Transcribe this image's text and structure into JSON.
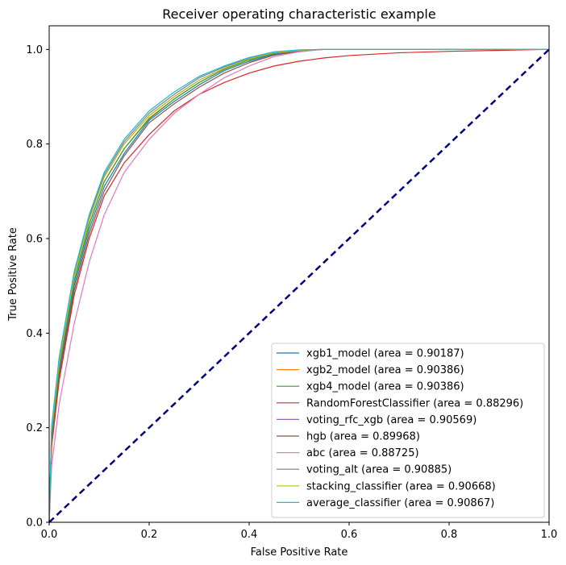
{
  "chart_data": {
    "type": "line",
    "title": "Receiver operating characteristic example",
    "xlabel": "False Positive Rate",
    "ylabel": "True Positive Rate",
    "xlim": [
      0,
      1
    ],
    "ylim": [
      0,
      1.05
    ],
    "xticks": [
      "0.0",
      "0.2",
      "0.4",
      "0.6",
      "0.8",
      "1.0"
    ],
    "yticks": [
      "0.0",
      "0.2",
      "0.4",
      "0.6",
      "0.8",
      "1.0"
    ],
    "legend_position": "lower-right",
    "grid": false,
    "diagonal": {
      "x": [
        0,
        1
      ],
      "y": [
        0,
        1
      ],
      "color": "#000080",
      "style": "dashed"
    },
    "series": [
      {
        "name": "xgb1_model (area = 0.90187)",
        "color": "#1f77b4",
        "x": [
          0,
          0.005,
          0.02,
          0.05,
          0.08,
          0.11,
          0.15,
          0.2,
          0.25,
          0.3,
          0.35,
          0.4,
          0.45,
          0.5,
          0.55,
          0.6,
          0.8,
          1.0
        ],
        "y": [
          0,
          0.18,
          0.32,
          0.5,
          0.62,
          0.71,
          0.78,
          0.85,
          0.89,
          0.925,
          0.955,
          0.975,
          0.99,
          0.997,
          1.0,
          1.0,
          1.0,
          1.0
        ]
      },
      {
        "name": "xgb2_model (area = 0.90386)",
        "color": "#ff7f0e",
        "x": [
          0,
          0.005,
          0.02,
          0.05,
          0.08,
          0.11,
          0.15,
          0.2,
          0.25,
          0.3,
          0.35,
          0.4,
          0.45,
          0.5,
          0.55,
          0.6,
          0.8,
          1.0
        ],
        "y": [
          0,
          0.19,
          0.33,
          0.51,
          0.63,
          0.72,
          0.79,
          0.855,
          0.895,
          0.93,
          0.958,
          0.978,
          0.992,
          0.998,
          1.0,
          1.0,
          1.0,
          1.0
        ]
      },
      {
        "name": "xgb4_model (area = 0.90386)",
        "color": "#2ca02c",
        "x": [
          0,
          0.005,
          0.02,
          0.05,
          0.08,
          0.11,
          0.15,
          0.2,
          0.25,
          0.3,
          0.35,
          0.4,
          0.45,
          0.5,
          0.55,
          0.6,
          0.8,
          1.0
        ],
        "y": [
          0,
          0.19,
          0.335,
          0.51,
          0.63,
          0.72,
          0.79,
          0.853,
          0.895,
          0.93,
          0.958,
          0.978,
          0.992,
          0.998,
          1.0,
          1.0,
          1.0,
          1.0
        ]
      },
      {
        "name": "RandomForestClassifier (area = 0.88296)",
        "color": "#d62728",
        "x": [
          0,
          0.005,
          0.02,
          0.05,
          0.08,
          0.11,
          0.15,
          0.2,
          0.25,
          0.3,
          0.35,
          0.4,
          0.45,
          0.5,
          0.55,
          0.6,
          0.7,
          0.8,
          0.9,
          1.0
        ],
        "y": [
          0,
          0.16,
          0.3,
          0.48,
          0.6,
          0.69,
          0.76,
          0.82,
          0.87,
          0.905,
          0.93,
          0.95,
          0.965,
          0.975,
          0.982,
          0.987,
          0.993,
          0.996,
          0.998,
          1.0
        ]
      },
      {
        "name": "voting_rfc_xgb (area = 0.90569)",
        "color": "#9467bd",
        "x": [
          0,
          0.005,
          0.02,
          0.05,
          0.08,
          0.11,
          0.15,
          0.2,
          0.25,
          0.3,
          0.35,
          0.4,
          0.45,
          0.5,
          0.55,
          0.6,
          0.8,
          1.0
        ],
        "y": [
          0,
          0.2,
          0.34,
          0.52,
          0.64,
          0.73,
          0.8,
          0.86,
          0.9,
          0.935,
          0.96,
          0.98,
          0.993,
          0.998,
          1.0,
          1.0,
          1.0,
          1.0
        ]
      },
      {
        "name": "hgb (area = 0.89968)",
        "color": "#8c564b",
        "x": [
          0,
          0.005,
          0.02,
          0.05,
          0.08,
          0.11,
          0.15,
          0.2,
          0.25,
          0.3,
          0.35,
          0.4,
          0.45,
          0.5,
          0.55,
          0.6,
          0.8,
          1.0
        ],
        "y": [
          0,
          0.17,
          0.31,
          0.49,
          0.61,
          0.7,
          0.775,
          0.845,
          0.885,
          0.92,
          0.95,
          0.972,
          0.988,
          0.996,
          1.0,
          1.0,
          1.0,
          1.0
        ]
      },
      {
        "name": "abc (area = 0.88725)",
        "color": "#e377c2",
        "x": [
          0,
          0.005,
          0.02,
          0.05,
          0.08,
          0.11,
          0.15,
          0.2,
          0.25,
          0.3,
          0.35,
          0.4,
          0.45,
          0.5,
          0.55,
          0.6,
          0.8,
          1.0
        ],
        "y": [
          0,
          0.12,
          0.25,
          0.42,
          0.55,
          0.65,
          0.74,
          0.81,
          0.865,
          0.905,
          0.94,
          0.965,
          0.985,
          0.995,
          1.0,
          1.0,
          1.0,
          1.0
        ]
      },
      {
        "name": "voting_alt (area = 0.90885)",
        "color": "#7f7f7f",
        "x": [
          0,
          0.005,
          0.02,
          0.05,
          0.08,
          0.11,
          0.15,
          0.2,
          0.25,
          0.3,
          0.35,
          0.4,
          0.45,
          0.5,
          0.55,
          0.6,
          0.8,
          1.0
        ],
        "y": [
          0,
          0.2,
          0.345,
          0.525,
          0.645,
          0.735,
          0.805,
          0.865,
          0.905,
          0.94,
          0.963,
          0.982,
          0.994,
          0.999,
          1.0,
          1.0,
          1.0,
          1.0
        ]
      },
      {
        "name": "stacking_classifier (area = 0.90668)",
        "color": "#bcbd22",
        "x": [
          0,
          0.005,
          0.02,
          0.05,
          0.08,
          0.11,
          0.15,
          0.2,
          0.25,
          0.3,
          0.35,
          0.4,
          0.45,
          0.5,
          0.55,
          0.6,
          0.8,
          1.0
        ],
        "y": [
          0,
          0.195,
          0.34,
          0.52,
          0.64,
          0.73,
          0.8,
          0.86,
          0.9,
          0.935,
          0.96,
          0.98,
          0.993,
          0.998,
          1.0,
          1.0,
          1.0,
          1.0
        ]
      },
      {
        "name": "average_classifier (area = 0.90867)",
        "color": "#17becf",
        "x": [
          0,
          0.005,
          0.02,
          0.05,
          0.08,
          0.11,
          0.15,
          0.2,
          0.25,
          0.3,
          0.35,
          0.4,
          0.45,
          0.5,
          0.55,
          0.6,
          0.8,
          1.0
        ],
        "y": [
          0,
          0.205,
          0.35,
          0.53,
          0.65,
          0.74,
          0.81,
          0.87,
          0.91,
          0.943,
          0.965,
          0.983,
          0.995,
          0.999,
          1.0,
          1.0,
          1.0,
          1.0
        ]
      }
    ]
  }
}
